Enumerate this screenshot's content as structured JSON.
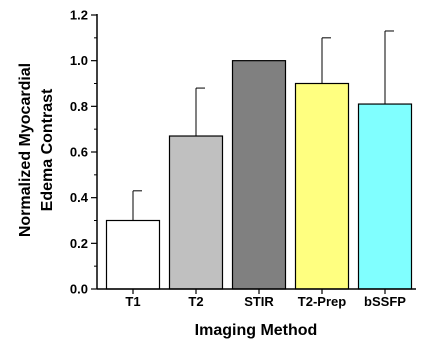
{
  "chart_data": {
    "type": "bar",
    "categories": [
      "T1",
      "T2",
      "STIR",
      "T2-Prep",
      "bSSFP"
    ],
    "values": [
      0.3,
      0.67,
      1.0,
      0.9,
      0.81
    ],
    "errors": [
      0.13,
      0.21,
      0.0,
      0.2,
      0.32
    ],
    "bar_colors": [
      "#ffffff",
      "#c0c0c0",
      "#808080",
      "#ffff80",
      "#80ffff"
    ],
    "xlabel": "Imaging Method",
    "ylabel_lines": [
      "Normalized Myocardial",
      "Edema Contrast"
    ],
    "ylim": [
      0.0,
      1.2
    ],
    "yticks": [
      "0.0",
      "0.2",
      "0.4",
      "0.6",
      "0.8",
      "1.0",
      "1.2"
    ],
    "grid": false
  }
}
